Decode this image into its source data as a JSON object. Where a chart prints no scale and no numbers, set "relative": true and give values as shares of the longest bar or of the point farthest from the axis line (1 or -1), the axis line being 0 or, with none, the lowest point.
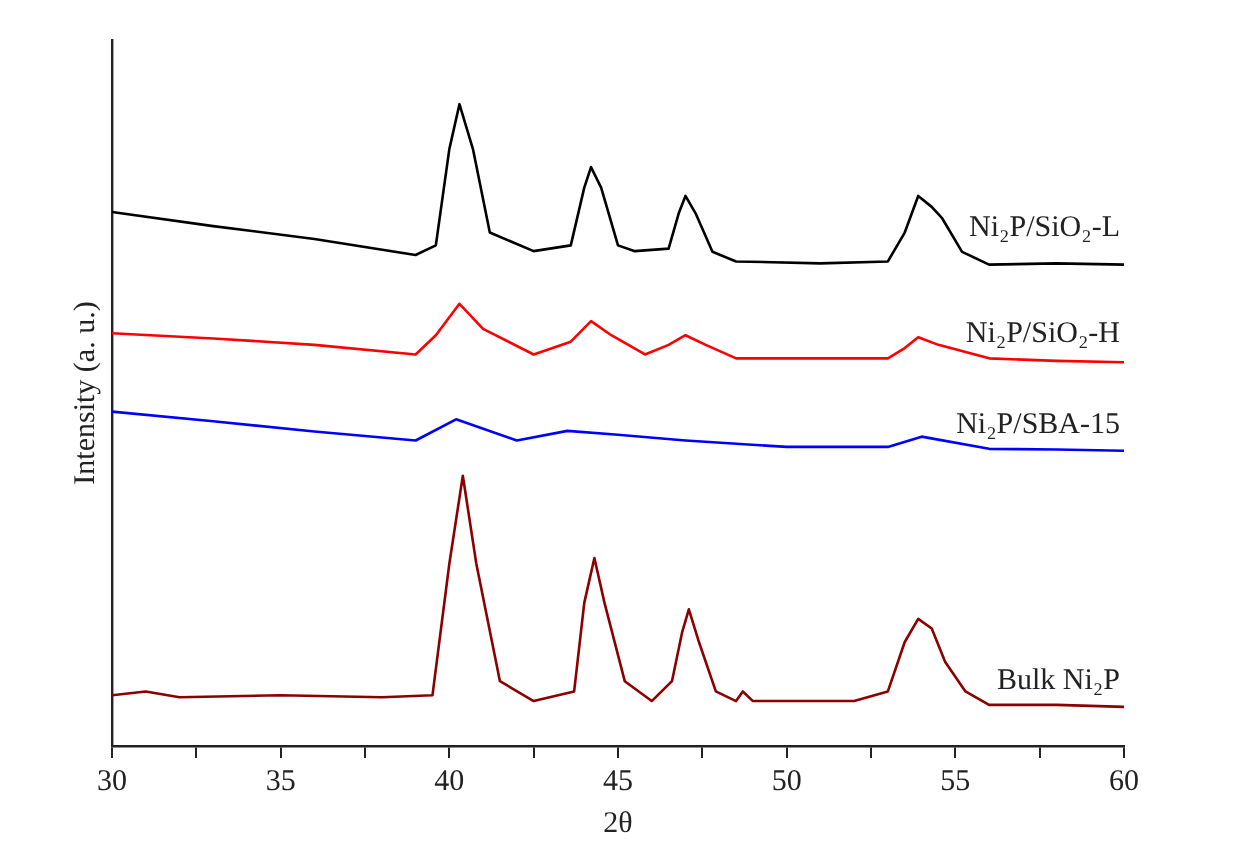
{
  "chart_data": {
    "type": "line",
    "xlabel": "2θ",
    "ylabel": "Intensity (a. u.)",
    "relative": true,
    "xlim": [
      30,
      60
    ],
    "xticks": [
      30,
      {
        "value": 32.5,
        "label": null
      },
      35,
      {
        "value": 37.5,
        "label": null
      },
      40,
      {
        "value": 42.5,
        "label": null
      },
      45,
      {
        "value": 47.5,
        "label": null
      },
      50,
      {
        "value": 52.5,
        "label": null
      },
      55,
      {
        "value": 57.5,
        "label": null
      },
      60
    ],
    "grid": false,
    "legend": false,
    "marker": "none",
    "line_style": "solid",
    "series": [
      {
        "name": "Ni₂P/SiO₂-L",
        "color": "#000000",
        "x": [
          30,
          33,
          36,
          39,
          39.6,
          40.0,
          40.3,
          40.7,
          41.2,
          42.5,
          43.6,
          44.0,
          44.2,
          44.5,
          45.0,
          45.5,
          46.5,
          46.8,
          47.0,
          47.3,
          47.8,
          48.5,
          51,
          53,
          53.5,
          53.9,
          54.3,
          54.6,
          55.2,
          56,
          58,
          60
        ],
        "values": [
          0.832,
          0.81,
          0.79,
          0.765,
          0.78,
          0.93,
          1,
          0.93,
          0.8,
          0.771,
          0.78,
          0.87,
          0.902,
          0.87,
          0.78,
          0.771,
          0.775,
          0.83,
          0.857,
          0.83,
          0.77,
          0.755,
          0.752,
          0.755,
          0.8,
          0.857,
          0.84,
          0.823,
          0.77,
          0.75,
          0.752,
          0.75
        ]
      },
      {
        "name": "Ni₂P/SiO₂-H",
        "color": "#ff0000",
        "x": [
          30,
          33,
          36,
          39,
          39.6,
          40.3,
          41.0,
          42.5,
          43.6,
          44.2,
          44.8,
          45.8,
          46.5,
          47.0,
          47.6,
          48.5,
          51,
          53,
          53.5,
          53.9,
          54.5,
          56,
          58,
          60
        ],
        "values": [
          0.643,
          0.635,
          0.625,
          0.61,
          0.64,
          0.689,
          0.65,
          0.61,
          0.63,
          0.662,
          0.64,
          0.61,
          0.625,
          0.64,
          0.625,
          0.604,
          0.604,
          0.604,
          0.62,
          0.637,
          0.625,
          0.604,
          0.6,
          0.598
        ]
      },
      {
        "name": "Ni₂P/SBA-15",
        "color": "#0000ff",
        "x": [
          30,
          33,
          36,
          39,
          40.2,
          42,
          43.5,
          45,
          47,
          50,
          53,
          54,
          56,
          58,
          60
        ],
        "values": [
          0.521,
          0.506,
          0.49,
          0.476,
          0.509,
          0.476,
          0.491,
          0.485,
          0.476,
          0.466,
          0.466,
          0.482,
          0.463,
          0.462,
          0.46
        ]
      },
      {
        "name": "Bulk Ni₂P",
        "color": "#8b0000",
        "x": [
          30,
          31,
          32,
          35,
          38,
          39.5,
          40.0,
          40.4,
          40.8,
          41.5,
          42.5,
          43.7,
          44.0,
          44.3,
          44.6,
          45.2,
          46.0,
          46.6,
          46.9,
          47.1,
          47.4,
          47.9,
          48.5,
          48.7,
          49,
          52,
          53,
          53.5,
          53.9,
          54.3,
          54.7,
          55.3,
          56,
          58,
          60
        ],
        "values": [
          0.079,
          0.085,
          0.076,
          0.079,
          0.076,
          0.079,
          0.284,
          0.421,
          0.284,
          0.101,
          0.07,
          0.085,
          0.223,
          0.293,
          0.223,
          0.101,
          0.07,
          0.101,
          0.177,
          0.213,
          0.162,
          0.085,
          0.07,
          0.085,
          0.07,
          0.07,
          0.085,
          0.162,
          0.198,
          0.183,
          0.131,
          0.085,
          0.064,
          0.064,
          0.061
        ]
      }
    ]
  }
}
